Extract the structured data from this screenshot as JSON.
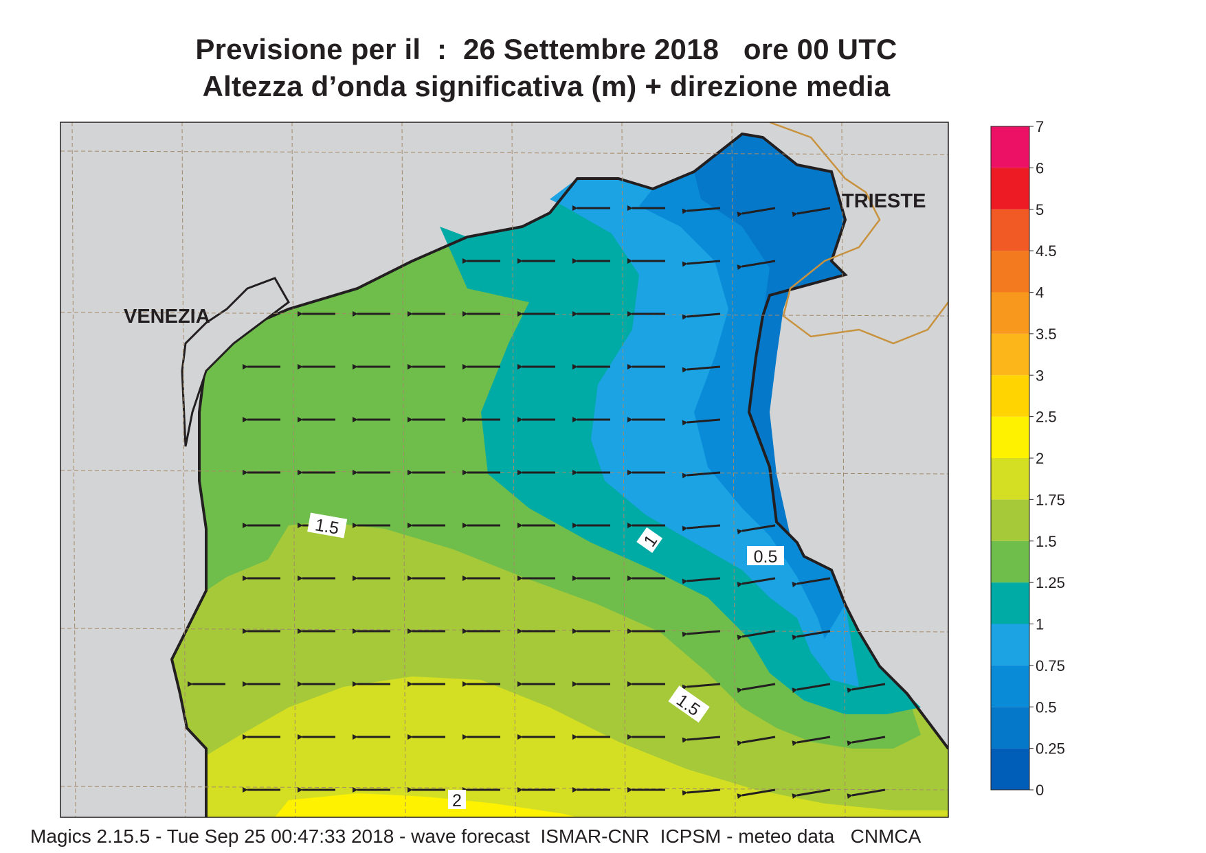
{
  "title": {
    "line1": "Previsione per il  :  26 Settembre 2018   ore 00 UTC",
    "line2": "Altezza d’onda significativa (m) + direzione media"
  },
  "footer": "Magics 2.15.5 - Tue Sep 25 00:47:33 2018 - wave forecast  ISMAR-CNR  ICPSM - meteo data   CNMCA",
  "cities": {
    "venezia": "VENEZIA",
    "trieste": "TRIESTE"
  },
  "colorbar": {
    "levels": [
      "0",
      "0.25",
      "0.5",
      "0.75",
      "1",
      "1.25",
      "1.5",
      "1.75",
      "2",
      "2.5",
      "3",
      "3.5",
      "4",
      "4.5",
      "5",
      "6",
      "7"
    ],
    "colors": [
      "#005eb8",
      "#0578c9",
      "#0a8bd8",
      "#1ba3e4",
      "#00aaa5",
      "#6fbe4b",
      "#a6c93a",
      "#d4df23",
      "#fff200",
      "#ffd400",
      "#fcb61a",
      "#f8991d",
      "#f47a20",
      "#f15a24",
      "#ed1c24",
      "#ec1164"
    ]
  },
  "contour_labels": [
    {
      "text": "1.5"
    },
    {
      "text": "1"
    },
    {
      "text": "0.5"
    },
    {
      "text": "1.5"
    },
    {
      "text": "2"
    }
  ],
  "arrows": {
    "direction": "westward"
  },
  "colors": {
    "land": "#d3d4d5",
    "coast": "#231f20",
    "border": "#c8923e",
    "arrow": "#231f20"
  }
}
